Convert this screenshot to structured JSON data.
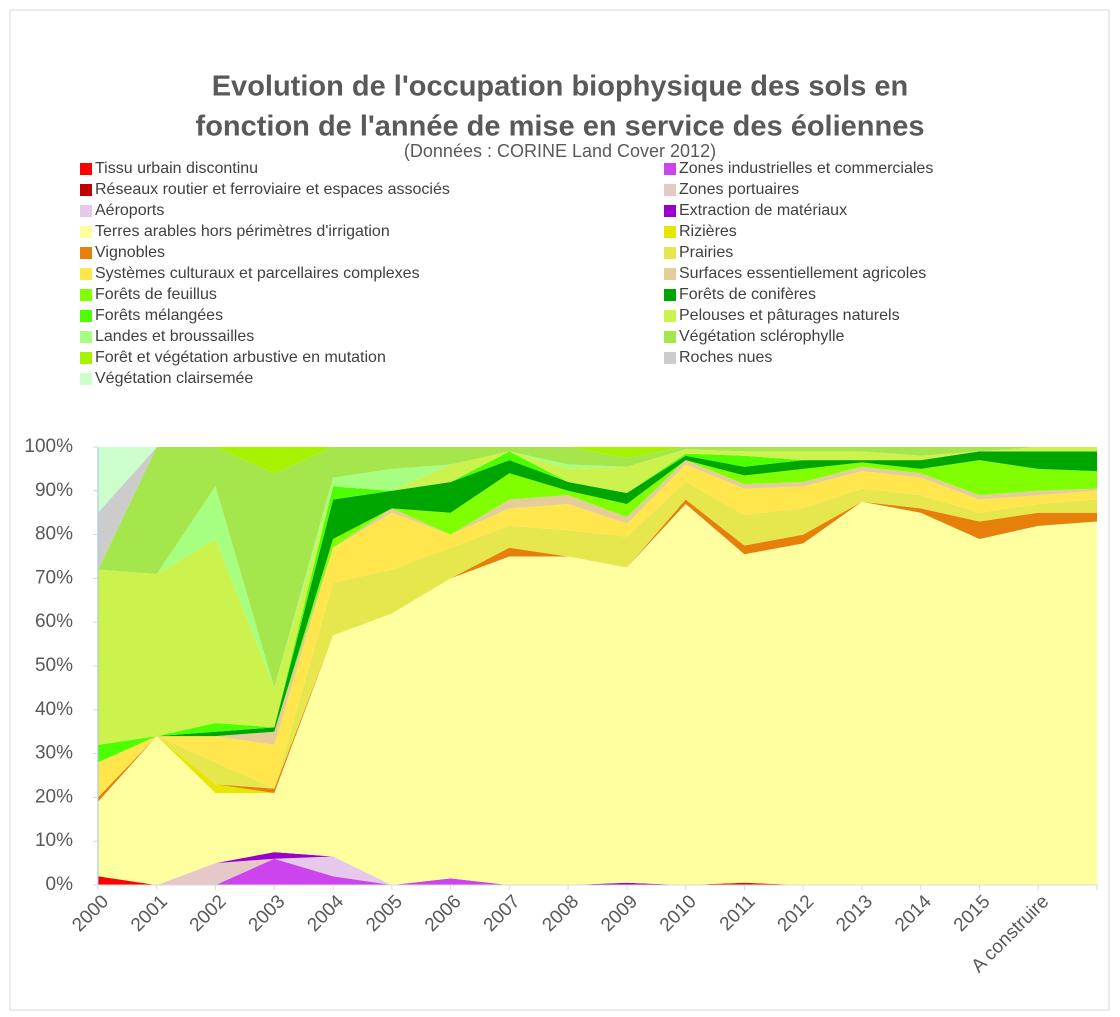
{
  "chart_data": {
    "type": "stacked_area",
    "title": [
      "Evolution de l'occupation biophysique des sols en",
      "fonction de l'année de mise en service des éoliennes"
    ],
    "subtitle": "(Données : CORINE Land Cover 2012)",
    "categories": [
      "2000",
      "2001",
      "2002",
      "2003",
      "2004",
      "2005",
      "2006",
      "2007",
      "2008",
      "2009",
      "2010",
      "2011",
      "2012",
      "2013",
      "2014",
      "2015",
      "A construire",
      null
    ],
    "ylim": [
      0,
      100
    ],
    "yticks": [
      {
        "value": 0,
        "label": "0%"
      },
      {
        "value": 10,
        "label": "10%"
      },
      {
        "value": 20,
        "label": "20%"
      },
      {
        "value": 30,
        "label": "30%"
      },
      {
        "value": 40,
        "label": "40%"
      },
      {
        "value": 50,
        "label": "50%"
      },
      {
        "value": 60,
        "label": "60%"
      },
      {
        "value": 70,
        "label": "70%"
      },
      {
        "value": 80,
        "label": "80%"
      },
      {
        "value": 90,
        "label": "90%"
      },
      {
        "value": 100,
        "label": "100%"
      }
    ],
    "grid": false,
    "series": [
      {
        "name": "Tissu urbain discontinu",
        "color": "#ff0000",
        "values": [
          2,
          0,
          0,
          0,
          0,
          0,
          0,
          0,
          0,
          0,
          0,
          0.5,
          0,
          0,
          0,
          0,
          0,
          0
        ]
      },
      {
        "name": "Zones industrielles et commerciales",
        "color": "#cc44ee",
        "values": [
          0,
          0,
          0,
          6,
          2,
          0,
          1.5,
          0,
          0,
          0,
          0,
          0,
          0,
          0,
          0,
          0,
          0,
          0
        ]
      },
      {
        "name": "Réseaux routier et ferroviaire et espaces associés",
        "color": "#c00000",
        "values": [
          0,
          0,
          0,
          0,
          0,
          0,
          0,
          0,
          0,
          0,
          0,
          0,
          0,
          0,
          0,
          0,
          0,
          0
        ]
      },
      {
        "name": "Zones portuaires",
        "color": "#e6c8c8",
        "values": [
          0,
          0,
          5,
          0,
          0,
          0,
          0,
          0,
          0,
          0,
          0,
          0,
          0,
          0,
          0,
          0,
          0,
          0
        ]
      },
      {
        "name": "Aéroports",
        "color": "#e6c8ea",
        "values": [
          0,
          0,
          0,
          0,
          4.5,
          0,
          0,
          0,
          0,
          0,
          0,
          0,
          0,
          0,
          0,
          0,
          0,
          0
        ]
      },
      {
        "name": "Extraction de matériaux",
        "color": "#9900cc",
        "values": [
          0,
          0,
          0,
          1.5,
          0,
          0,
          0,
          0,
          0,
          0.5,
          0,
          0,
          0,
          0,
          0,
          0,
          0,
          0
        ]
      },
      {
        "name": "Terres arables hors périmètres d'irrigation",
        "color": "#ffffa0",
        "values": [
          17,
          34,
          16,
          13.5,
          50.5,
          62,
          68.5,
          75,
          75,
          72,
          87,
          75,
          78,
          87.5,
          85,
          79,
          82,
          83
        ]
      },
      {
        "name": "Rizières",
        "color": "#e6e600",
        "values": [
          0,
          0,
          2,
          0,
          0,
          0,
          0,
          0,
          0,
          0,
          0,
          0,
          0,
          0,
          0,
          0,
          0,
          0
        ]
      },
      {
        "name": "Vignobles",
        "color": "#e6800a",
        "values": [
          1,
          0,
          0,
          1,
          0,
          0,
          0,
          2,
          0,
          0,
          1,
          2,
          2,
          0,
          1,
          4,
          3,
          2
        ]
      },
      {
        "name": "Prairies",
        "color": "#e6e64d",
        "values": [
          0,
          0,
          5,
          0,
          12,
          10,
          7,
          5,
          6,
          7,
          4,
          7,
          6,
          3,
          3,
          2,
          2,
          3
        ]
      },
      {
        "name": "Systèmes culturaux et parcellaires complexes",
        "color": "#ffe64d",
        "values": [
          8,
          0,
          6,
          10,
          8,
          13,
          3,
          4,
          6,
          3,
          4,
          6,
          5,
          4,
          4,
          3,
          2,
          2
        ]
      },
      {
        "name": "Surfaces essentiellement agricoles",
        "color": "#e6cc99",
        "values": [
          0,
          0,
          0,
          3,
          0,
          1,
          0,
          2,
          2,
          1.5,
          1,
          1,
          1,
          1,
          1,
          1,
          1,
          0.5
        ]
      },
      {
        "name": "Forêts de feuillus",
        "color": "#80ff00",
        "values": [
          0,
          0,
          0,
          0,
          2,
          0,
          5,
          6,
          1,
          3,
          0,
          2,
          3,
          1,
          1,
          8,
          5,
          4
        ]
      },
      {
        "name": "Forêts de conifères",
        "color": "#00a600",
        "values": [
          0,
          0,
          1,
          1,
          9,
          4,
          7,
          3,
          2,
          2.5,
          1,
          2,
          2,
          0.5,
          2,
          2,
          4,
          4.5
        ]
      },
      {
        "name": "Forêts mélangées",
        "color": "#4dff00",
        "values": [
          4,
          0,
          2,
          0,
          3,
          0,
          0,
          2,
          0,
          0,
          0.5,
          2.5,
          0,
          0,
          0,
          0,
          0,
          0
        ]
      },
      {
        "name": "Pelouses et pâturages naturels",
        "color": "#ccf24d",
        "values": [
          40,
          37,
          42,
          9,
          0,
          0,
          4,
          0,
          3,
          6,
          1,
          1,
          2,
          2,
          1,
          0,
          1,
          1
        ]
      },
      {
        "name": "Landes et broussailles",
        "color": "#a6ff80",
        "values": [
          0,
          0,
          12,
          0,
          2,
          5,
          0,
          0,
          1,
          0,
          0,
          0,
          0,
          0,
          0,
          0,
          0,
          0
        ]
      },
      {
        "name": "Végétation sclérophylle",
        "color": "#a6e64d",
        "values": [
          0,
          29,
          9,
          49,
          7,
          5,
          4,
          1,
          4,
          2,
          0.5,
          1,
          1,
          1,
          2,
          1,
          0,
          0
        ]
      },
      {
        "name": "Forêt et végétation arbustive en mutation",
        "color": "#a6f200",
        "values": [
          0,
          0,
          0,
          6,
          0,
          0,
          0,
          0,
          0,
          2.5,
          0,
          0,
          0,
          0,
          0,
          0,
          0,
          0
        ]
      },
      {
        "name": "Roches nues",
        "color": "#cccccc",
        "values": [
          13,
          0,
          0,
          0,
          0,
          0,
          0,
          0,
          0,
          0,
          0,
          0,
          0,
          0,
          0,
          0,
          0,
          0
        ]
      },
      {
        "name": "Végétation clairsemée",
        "color": "#ccffcc",
        "values": [
          15,
          0,
          0,
          0,
          0,
          0,
          0,
          0,
          0,
          0,
          0,
          0,
          0,
          0,
          0,
          0,
          0,
          0
        ]
      }
    ]
  }
}
